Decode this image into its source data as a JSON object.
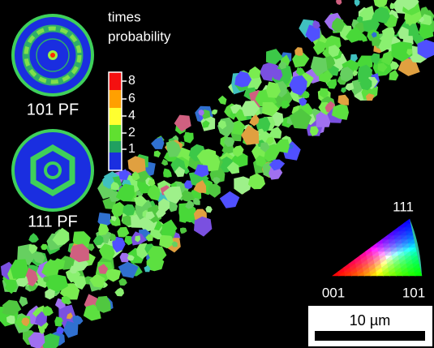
{
  "legend": {
    "title": [
      "times",
      "probability"
    ],
    "ticks": [
      "8",
      "6",
      "4",
      "2",
      "1"
    ]
  },
  "pole_figures": [
    "101 PF",
    "111 PF"
  ],
  "ipf_key": {
    "top": "111",
    "left": "001",
    "right": "101"
  },
  "scale_bar": "10 µm"
}
